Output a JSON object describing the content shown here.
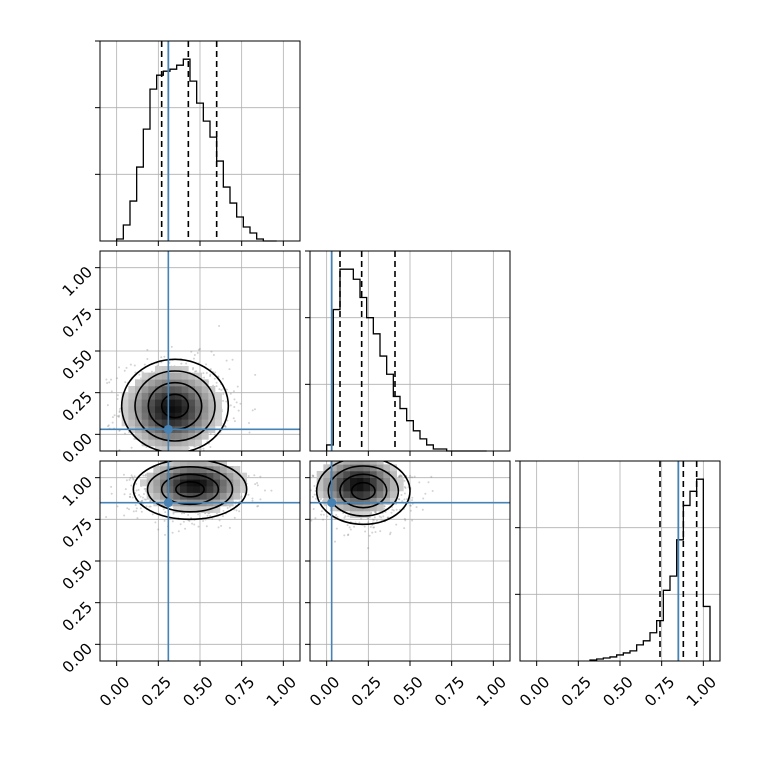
{
  "chart_data": {
    "type": "corner",
    "parameters": 3,
    "truths": [
      0.31,
      0.03,
      0.85
    ],
    "tick_values": [
      0.0,
      0.25,
      0.5,
      0.75,
      1.0
    ],
    "tick_labels": [
      "0.00",
      "0.25",
      "0.50",
      "0.75",
      "1.00"
    ],
    "axis_range": [
      -0.1,
      1.1
    ],
    "grid": true,
    "colors": {
      "truth": "#4682b4",
      "hist_line": "#000000",
      "quantile_line": "#000000",
      "samples": "#808080",
      "grid": "#b0b0b0"
    },
    "panels": [
      {
        "type": "histogram",
        "param": 0,
        "bin_edges": [
          0.0,
          0.04,
          0.08,
          0.12,
          0.16,
          0.2,
          0.24,
          0.28,
          0.32,
          0.36,
          0.4,
          0.44,
          0.48,
          0.52,
          0.56,
          0.6,
          0.64,
          0.68,
          0.72,
          0.76,
          0.8,
          0.84,
          0.88,
          0.92,
          0.96
        ],
        "counts": [
          1,
          8,
          20,
          37,
          56,
          76,
          83,
          85,
          86,
          88,
          91,
          80,
          69,
          60,
          52,
          40,
          27,
          19,
          12,
          7,
          4,
          1,
          0,
          0
        ],
        "quantiles": [
          0.27,
          0.43,
          0.6
        ],
        "truth": 0.31
      },
      {
        "type": "histogram",
        "param": 1,
        "bin_edges": [
          0.0,
          0.04,
          0.08,
          0.12,
          0.16,
          0.2,
          0.24,
          0.28,
          0.32,
          0.36,
          0.4,
          0.44,
          0.48,
          0.52,
          0.56,
          0.6,
          0.64,
          0.68,
          0.72,
          0.76,
          0.8,
          0.84,
          0.88,
          0.92,
          0.96
        ],
        "counts": [
          3,
          70,
          90,
          90,
          85,
          76,
          66,
          58,
          47,
          38,
          27,
          21,
          15,
          10,
          6,
          3,
          1,
          1,
          0,
          0,
          0,
          0,
          0,
          0
        ],
        "quantiles": [
          0.08,
          0.21,
          0.41
        ],
        "truth": 0.03
      },
      {
        "type": "histogram",
        "param": 2,
        "bin_edges": [
          0.32,
          0.36,
          0.4,
          0.44,
          0.48,
          0.52,
          0.56,
          0.6,
          0.64,
          0.68,
          0.72,
          0.76,
          0.8,
          0.84,
          0.88,
          0.92,
          0.96,
          1.0,
          1.04
        ],
        "counts": [
          0.5,
          1,
          1.5,
          2,
          3,
          4,
          5,
          8,
          10,
          14,
          20,
          35,
          42,
          60,
          77,
          84,
          90,
          27
        ],
        "quantiles": [
          0.74,
          0.88,
          0.96
        ],
        "truth": 0.85
      },
      {
        "type": "density2d",
        "x_param": 0,
        "y_param": 1,
        "center": [
          0.35,
          0.17
        ],
        "spread": [
          0.16,
          0.14
        ],
        "peak": [
          0.33,
          0.15
        ],
        "contour_levels": 4
      },
      {
        "type": "density2d",
        "x_param": 0,
        "y_param": 2,
        "center": [
          0.44,
          0.93
        ],
        "spread": [
          0.17,
          0.09
        ],
        "peak": [
          0.47,
          0.96
        ],
        "contour_levels": 4
      },
      {
        "type": "density2d",
        "x_param": 1,
        "y_param": 2,
        "center": [
          0.22,
          0.92
        ],
        "spread": [
          0.14,
          0.1
        ],
        "peak": [
          0.19,
          0.96
        ],
        "contour_levels": 4
      }
    ]
  }
}
